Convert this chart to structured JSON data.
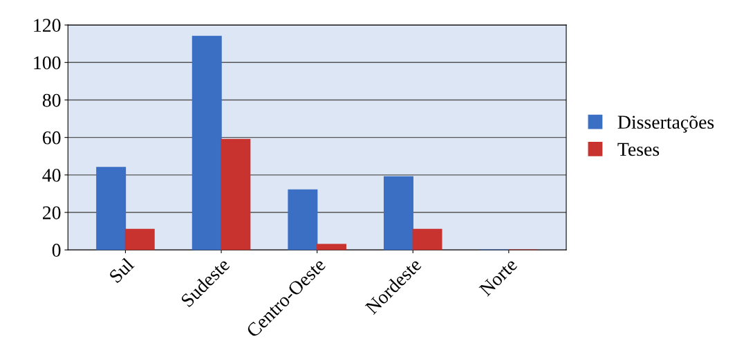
{
  "chart_data": {
    "type": "bar",
    "categories": [
      "Sul",
      "Sudeste",
      "Centro-Oeste",
      "Nordeste",
      "Norte"
    ],
    "series": [
      {
        "name": "Dissertações",
        "color": "#3b6fc4",
        "values": [
          44,
          114,
          32,
          39,
          0
        ]
      },
      {
        "name": "Teses",
        "color": "#c8322f",
        "values": [
          11,
          59,
          3,
          11,
          0
        ]
      }
    ],
    "ylim": [
      0,
      120
    ],
    "yticks": [
      0,
      20,
      40,
      60,
      80,
      100,
      120
    ],
    "grid": "y",
    "legend": "right"
  }
}
